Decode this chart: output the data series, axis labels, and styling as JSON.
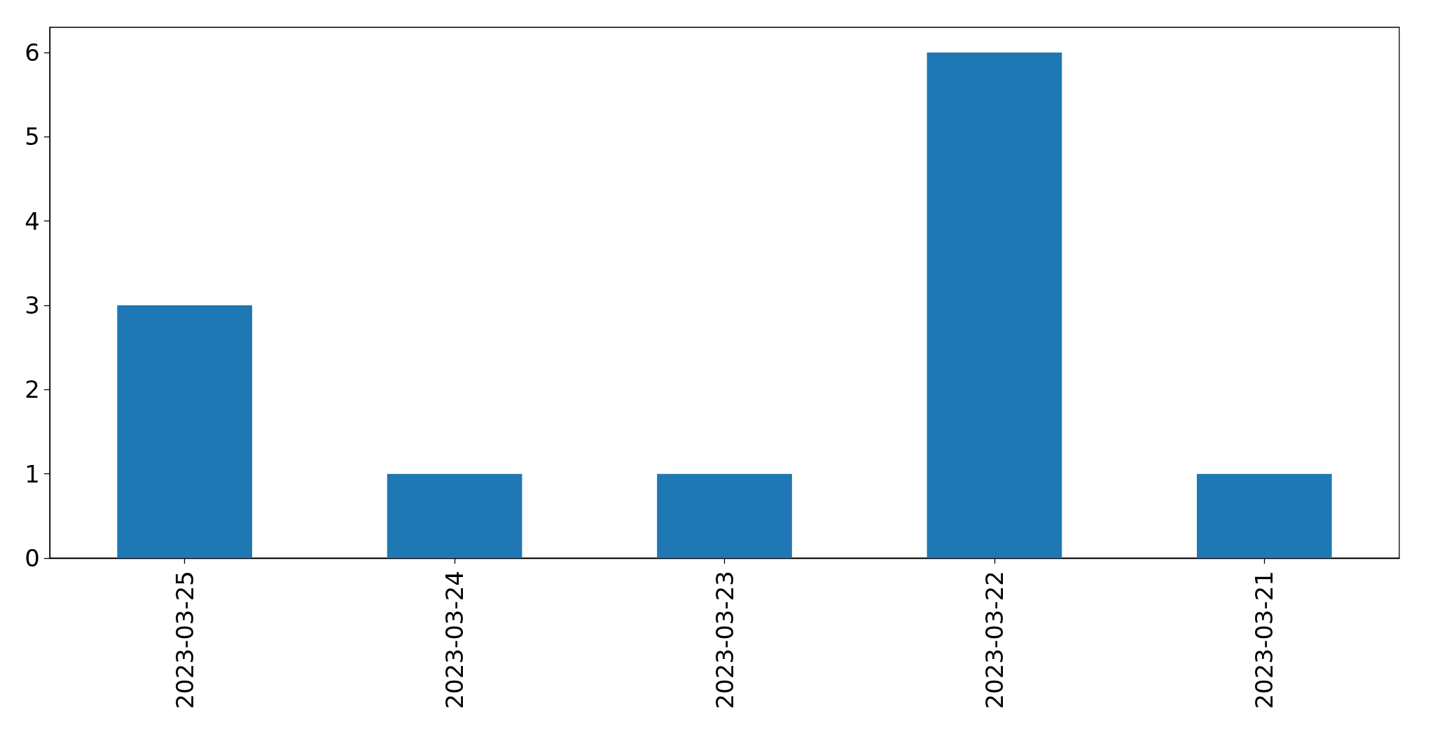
{
  "chart_data": {
    "type": "bar",
    "categories": [
      "2023-03-25",
      "2023-03-24",
      "2023-03-23",
      "2023-03-22",
      "2023-03-21"
    ],
    "values": [
      3,
      1,
      1,
      6,
      1
    ],
    "color": "#1f77b4",
    "ylim": [
      0,
      6.3
    ],
    "yticks": [
      0,
      1,
      2,
      3,
      4,
      5,
      6
    ],
    "grid": false
  }
}
